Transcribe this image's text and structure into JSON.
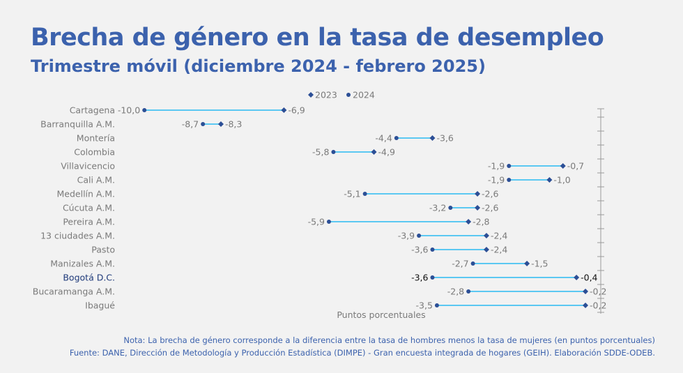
{
  "header": {
    "title": "Brecha de género en la tasa de desempleo",
    "subtitle": "Trimestre móvil (diciembre 2024 - febrero 2025)"
  },
  "colors": {
    "accent": "#3c62ad",
    "marker": "#2c4f96",
    "connector": "#5bc8f2",
    "label": "#7a7a7a",
    "highlight_label": "#1f3a7a",
    "axis": "#9a9a9a"
  },
  "chart_data": {
    "type": "dumbbell",
    "title": "Brecha de género en la tasa de desempleo",
    "subtitle": "Trimestre móvil (diciembre 2024 - febrero 2025)",
    "xlabel": "Puntos porcentuales",
    "xlim": [
      -10.7,
      0.45
    ],
    "legend": [
      {
        "name": "2023",
        "marker": "diamond"
      },
      {
        "name": "2024",
        "marker": "circle"
      }
    ],
    "legend_position": "top-center",
    "highlight_category": "Bogotá D.C.",
    "categories": [
      "Cartagena",
      "Barranquilla A.M.",
      "Montería",
      "Colombia",
      "Villavicencio",
      "Cali A.M.",
      "Medellín A.M.",
      "Cúcuta A.M.",
      "Pereira A.M.",
      "13 ciudades A.M.",
      "Pasto",
      "Manizales A.M.",
      "Bogotá D.C.",
      "Bucaramanga A.M.",
      "Ibagué"
    ],
    "series": [
      {
        "name": "2023",
        "values": [
          -6.9,
          -8.3,
          -3.6,
          -4.9,
          -0.7,
          -1.0,
          -2.6,
          -2.6,
          -2.8,
          -2.4,
          -2.4,
          -1.5,
          -0.4,
          -0.2,
          -0.2
        ],
        "labels": [
          "-6,9",
          "-8,3",
          "-3,6",
          "-4,9",
          "-0,7",
          "-1,0",
          "-2,6",
          "-2,6",
          "-2,8",
          "-2,4",
          "-2,4",
          "-1,5",
          "-0,4",
          "-0,2",
          "-0,2"
        ]
      },
      {
        "name": "2024",
        "values": [
          -10.0,
          -8.7,
          -4.4,
          -5.8,
          -1.9,
          -1.9,
          -5.1,
          -3.2,
          -5.9,
          -3.9,
          -3.6,
          -2.7,
          -3.6,
          -2.8,
          -3.5
        ],
        "labels": [
          "-10,0",
          "-8,7",
          "-4,4",
          "-5,8",
          "-1,9",
          "-1,9",
          "-5,1",
          "-3,2",
          "-5,9",
          "-3,9",
          "-3,6",
          "-2,7",
          "-3,6",
          "-2,8",
          "-3,5"
        ]
      }
    ]
  },
  "footer": {
    "note": "Nota: La brecha de género corresponde a la diferencia entre la tasa de hombres menos la tasa de mujeres (en puntos porcentuales)",
    "source": "Fuente: DANE, Dirección de Metodología y Producción Estadística (DIMPE) - Gran encuesta integrada de hogares (GEIH). Elaboración SDDE-ODEB."
  }
}
